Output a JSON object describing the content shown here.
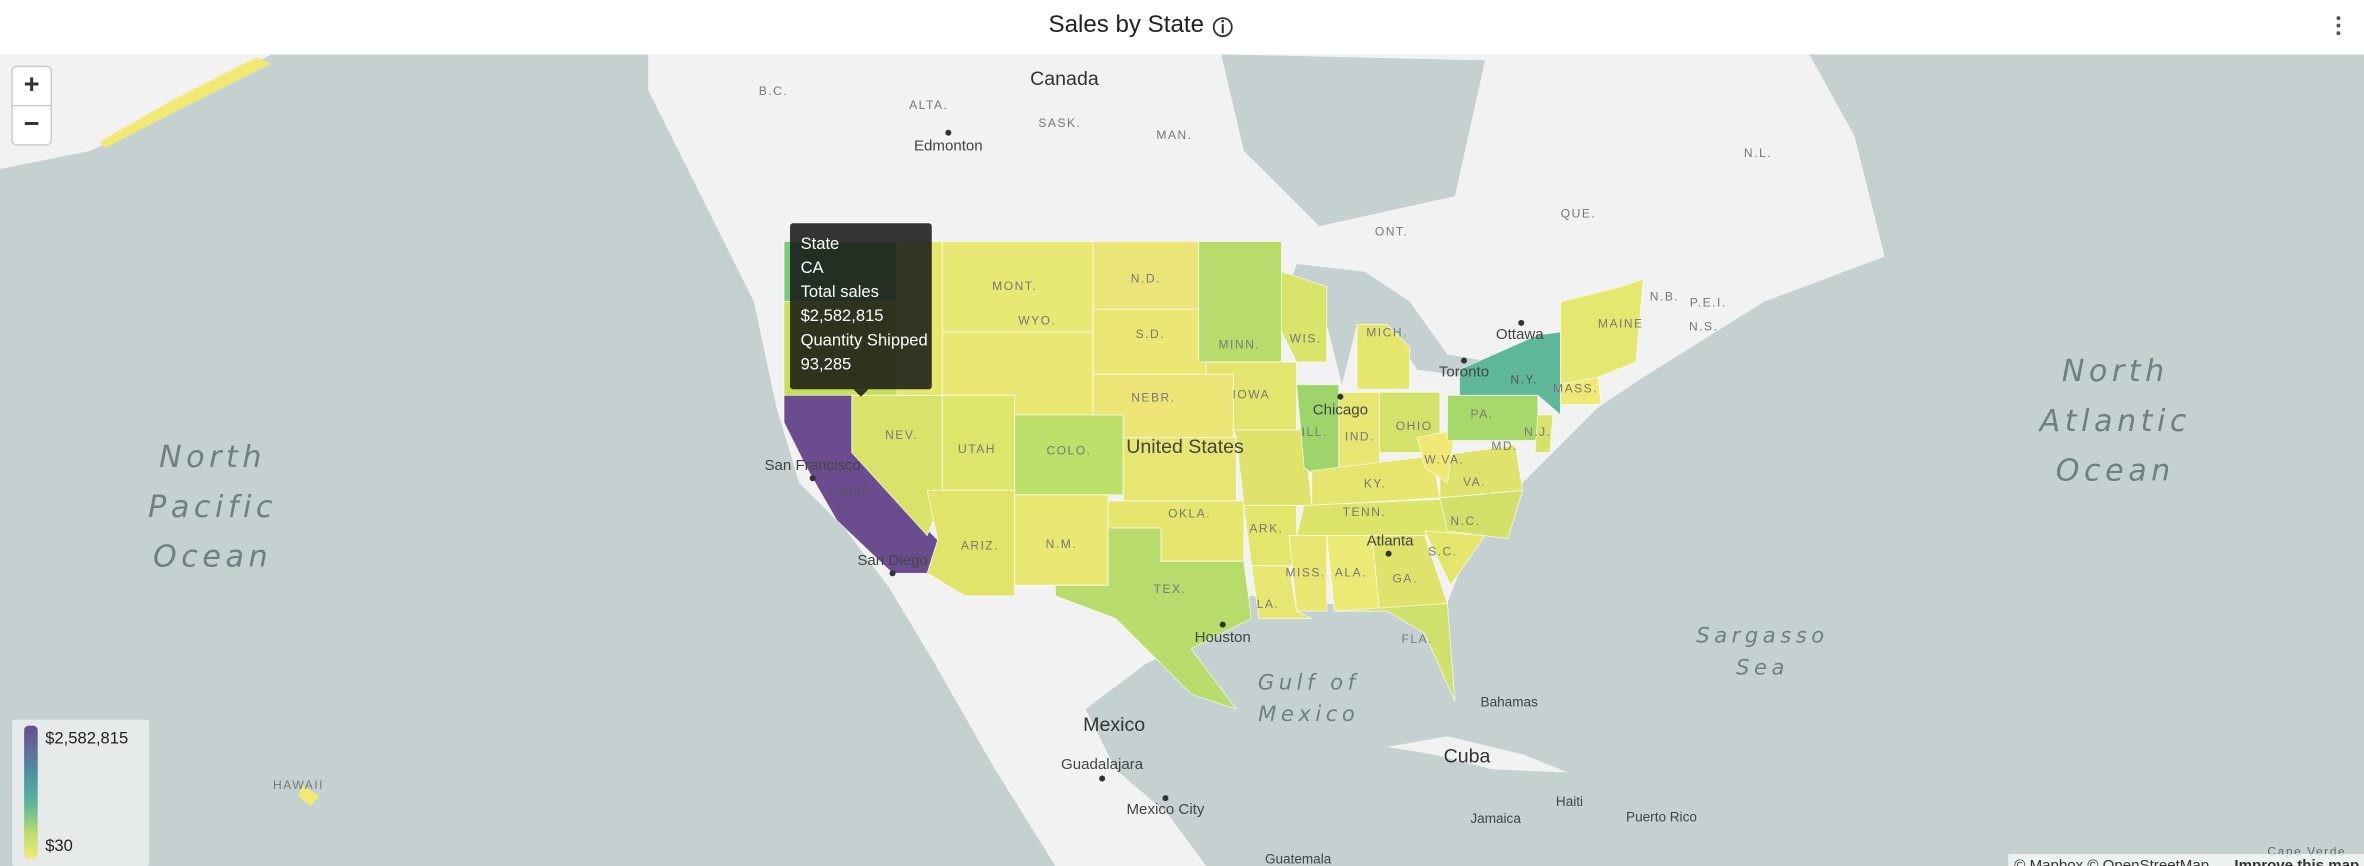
{
  "header": {
    "title": "Sales by State"
  },
  "zoom": {
    "in": "+",
    "out": "−"
  },
  "tooltip": {
    "lines": [
      "State",
      "CA",
      "Total sales",
      "$2,582,815",
      "Quantity Shipped",
      "93,285"
    ]
  },
  "legend": {
    "max_label": "$2,582,815",
    "min_label": "$30"
  },
  "map": {
    "place_labels": [
      "Canada",
      "B.C.",
      "ALTA.",
      "SASK.",
      "MAN.",
      "ONT.",
      "QUE.",
      "N.L.",
      "N.B.",
      "P.E.I.",
      "N.S.",
      "Edmonton",
      "MONT.",
      "N.D.",
      "MINN.",
      "WIS.",
      "MICH.",
      "S.D.",
      "WYO.",
      "NEBR.",
      "IOWA",
      "NEV.",
      "UTAH",
      "COLO.",
      "United States",
      "CALIF.",
      "ILL.",
      "IND.",
      "OHIO",
      "PA.",
      "N.Y.",
      "MASS.",
      "N.J.",
      "MD.",
      "W.VA.",
      "VA.",
      "KY.",
      "TENN.",
      "N.C.",
      "OKLA.",
      "ARK.",
      "S.C.",
      "ARIZ.",
      "N.M.",
      "MISS.",
      "ALA.",
      "GA.",
      "TEX.",
      "LA.",
      "FLA.",
      "MAINE",
      "Ottawa",
      "Toronto",
      "Chicago",
      "Atlanta",
      "Houston",
      "San Francisco",
      "San Diego",
      "Mexico",
      "Guadalajara",
      "Mexico City",
      "Cuba",
      "Bahamas",
      "Haiti",
      "Jamaica",
      "Puerto Rico",
      "Guatemala",
      "HAWAII",
      "Cape Verde"
    ],
    "water_labels": [
      "North",
      "Pacific",
      "Ocean",
      "North",
      "Atlantic",
      "Ocean",
      "Gulf of",
      "Mexico",
      "Sargasso",
      "Sea"
    ],
    "attribution": "© Mapbox © OpenStreetMap",
    "attribution_link": "Improve this map"
  }
}
